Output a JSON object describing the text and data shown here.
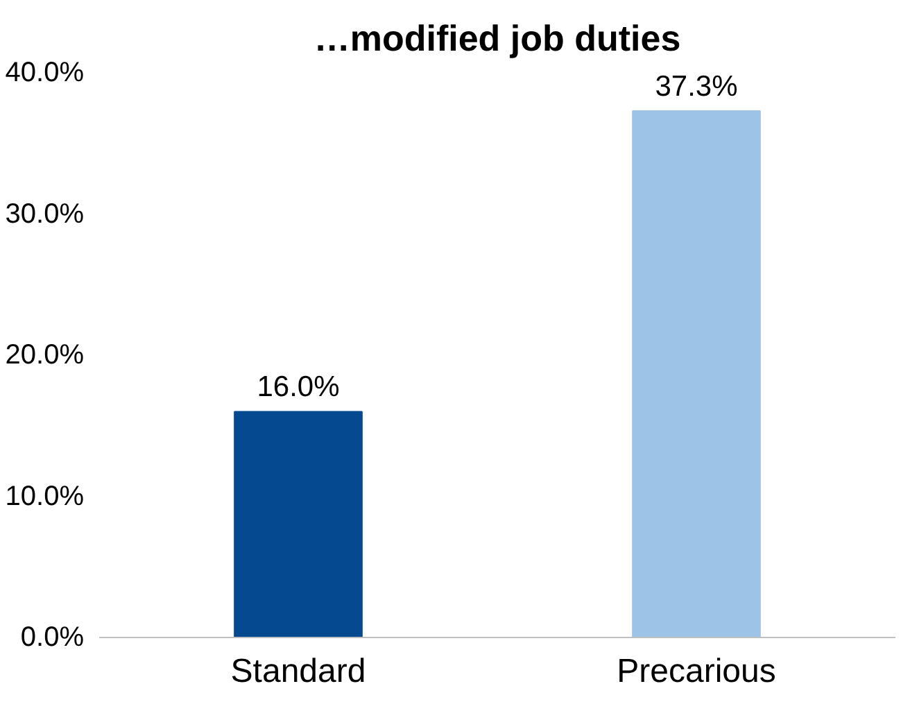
{
  "chart_data": {
    "type": "bar",
    "title": "…modified job duties",
    "categories": [
      "Standard",
      "Precarious"
    ],
    "values": [
      16.0,
      37.3
    ],
    "colors": [
      "#054a91",
      "#9dc3e6"
    ],
    "value_labels": [
      "16.0%",
      "37.3%"
    ],
    "ylim": [
      0,
      40
    ],
    "yticks": [
      {
        "value": 0,
        "label": "0.0%"
      },
      {
        "value": 10,
        "label": "10.0%"
      },
      {
        "value": 20,
        "label": "20.0%"
      },
      {
        "value": 30,
        "label": "30.0%"
      },
      {
        "value": 40,
        "label": "40.0%"
      }
    ],
    "grid": false
  }
}
